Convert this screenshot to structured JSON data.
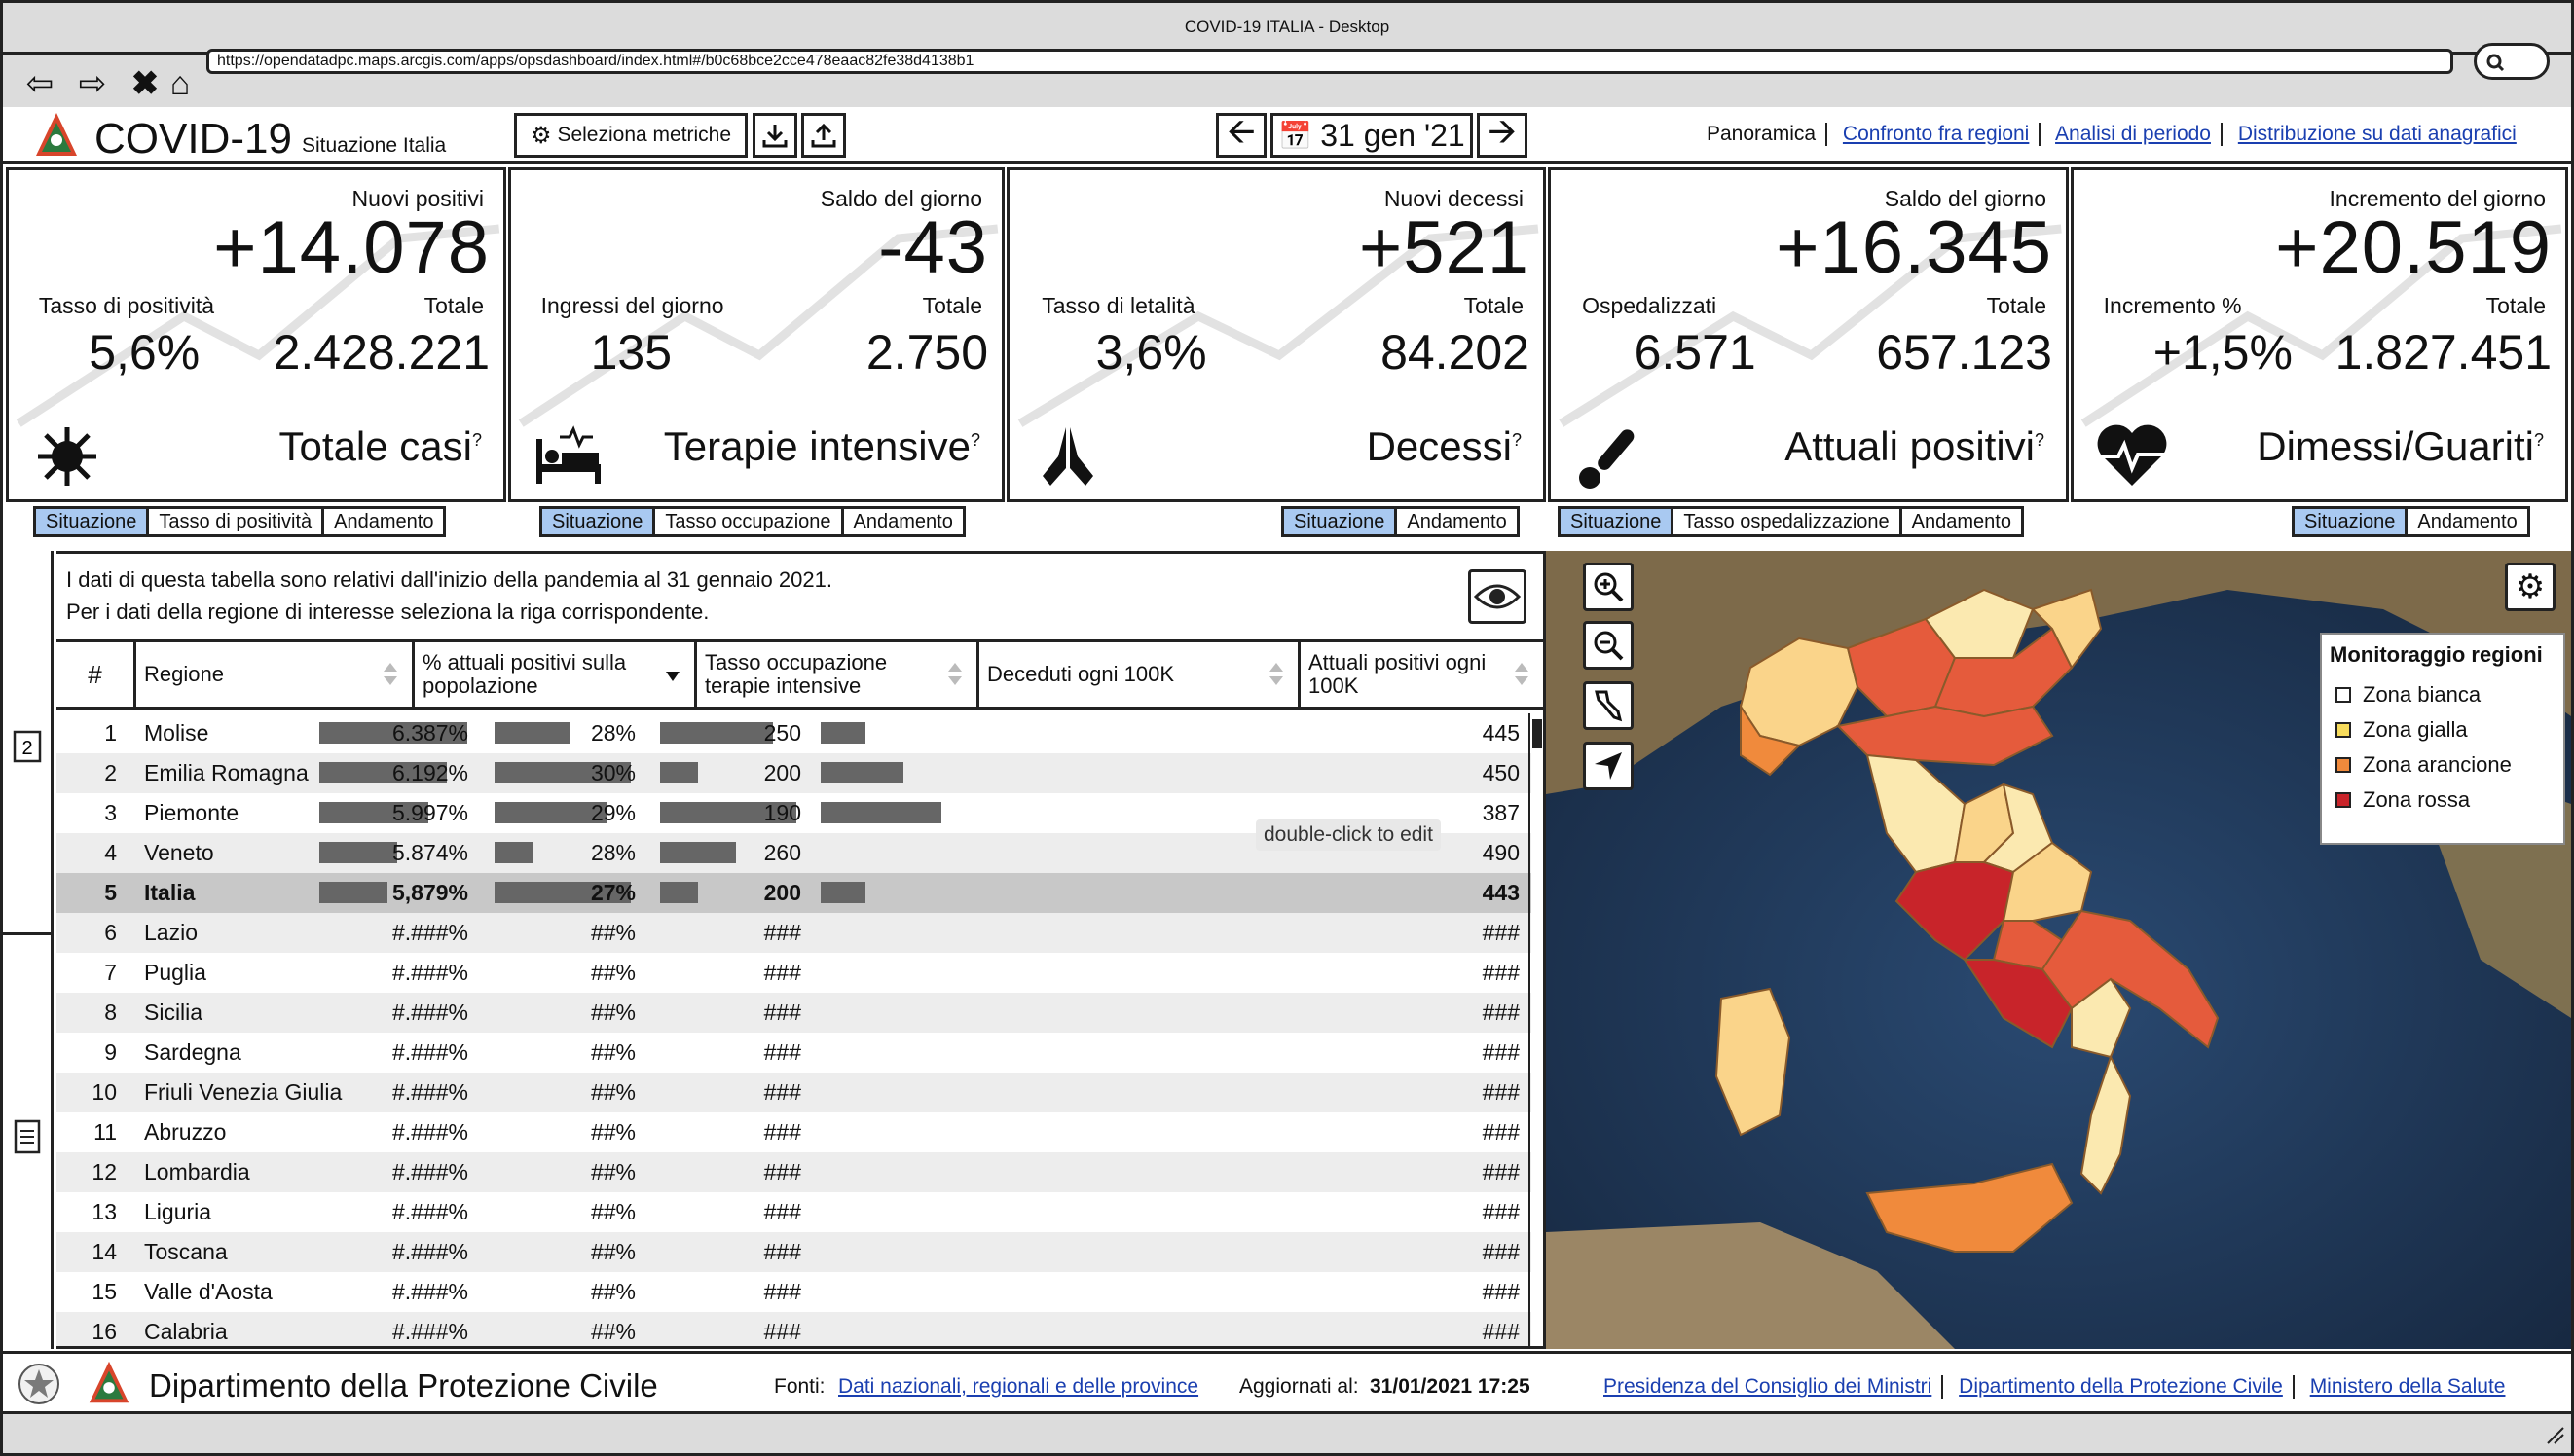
{
  "window": {
    "title": "COVID-19 ITALIA - Desktop",
    "url": "https://opendatadpc.maps.arcgis.com/apps/opsdashboard/index.html#/b0c68bce2cce478eaac82fe38d4138b1"
  },
  "header": {
    "title": "COVID-19",
    "subtitle": "Situazione Italia",
    "metrics_button": "Seleziona metriche",
    "date": "31 gen '21",
    "nav": [
      "Panoramica",
      "Confronto fra regioni",
      "Analisi di periodo",
      "Distribuzione su dati anagrafici"
    ]
  },
  "cards": [
    {
      "top_label": "Nuovi positivi",
      "big": "+14.078",
      "left_label": "Tasso di positività",
      "left_value": "5,6%",
      "right_label": "Totale",
      "right_value": "2.428.221",
      "title": "Totale casi",
      "icon": "virus-icon",
      "tabs": [
        "Situazione",
        "Tasso di positività",
        "Andamento"
      ]
    },
    {
      "top_label": "Saldo del giorno",
      "big": "-43",
      "left_label": "Ingressi del giorno",
      "left_value": "135",
      "right_label": "Totale",
      "right_value": "2.750",
      "title": "Terapie intensive",
      "icon": "hospital-bed-icon",
      "tabs": [
        "Situazione",
        "Tasso occupazione",
        "Andamento"
      ]
    },
    {
      "top_label": "Nuovi decessi",
      "big": "+521",
      "left_label": "Tasso di letalità",
      "left_value": "3,6%",
      "right_label": "Totale",
      "right_value": "84.202",
      "title": "Decessi",
      "icon": "praying-hands-icon",
      "tabs": [
        "Situazione",
        "Andamento"
      ]
    },
    {
      "top_label": "Saldo del giorno",
      "big": "+16.345",
      "left_label": "Ospedalizzati",
      "left_value": "6.571",
      "right_label": "Totale",
      "right_value": "657.123",
      "title": "Attuali positivi",
      "icon": "thermometer-icon",
      "tabs": [
        "Situazione",
        "Tasso ospedalizzazione",
        "Andamento"
      ]
    },
    {
      "top_label": "Incremento del giorno",
      "big": "+20.519",
      "left_label": "Incremento %",
      "left_value": "+1,5%",
      "right_label": "Totale",
      "right_value": "1.827.451",
      "title": "Dimessi/Guariti",
      "icon": "heartbeat-icon",
      "tabs": [
        "Situazione",
        "Andamento"
      ]
    }
  ],
  "table": {
    "note_line1": "I dati di questa tabella sono relativi dall'inizio della pandemia al 31 gennaio 2021.",
    "note_line2": "Per i dati della regione di interesse seleziona la riga corrispondente.",
    "headers": [
      "#",
      "Regione",
      "% attuali positivi sulla popolazione",
      "Tasso occupazione terapie intensive",
      "Deceduti ogni 100K",
      "Attuali positivi ogni 100K"
    ],
    "rows": [
      {
        "n": "1",
        "regione": "Molise",
        "pct": "6.387%",
        "occ": "28%",
        "dec": "250",
        "att": "445",
        "b1": 0.95,
        "b2": 0.5,
        "b3": 0.75,
        "b4": 0.35
      },
      {
        "n": "2",
        "regione": "Emilia Romagna",
        "pct": "6.192%",
        "occ": "30%",
        "dec": "200",
        "att": "450",
        "b1": 0.82,
        "b2": 0.9,
        "b3": 0.25,
        "b4": 0.65
      },
      {
        "n": "3",
        "regione": "Piemonte",
        "pct": "5.997%",
        "occ": "29%",
        "dec": "190",
        "att": "387",
        "b1": 0.7,
        "b2": 0.75,
        "b3": 0.9,
        "b4": 0.95
      },
      {
        "n": "4",
        "regione": "Veneto",
        "pct": "5.874%",
        "occ": "28%",
        "dec": "260",
        "att": "490",
        "b1": 0.5,
        "b2": 0.25,
        "b3": 0.5,
        "b4": 0
      },
      {
        "n": "5",
        "regione": "Italia",
        "pct": "5,879%",
        "occ": "27%",
        "dec": "200",
        "att": "443",
        "b1": 0.44,
        "b2": 0.9,
        "b3": 0.25,
        "b4": 0.35
      },
      {
        "n": "6",
        "regione": "Lazio",
        "pct": "#.###%",
        "occ": "##%",
        "dec": "###",
        "att": "###"
      },
      {
        "n": "7",
        "regione": "Puglia",
        "pct": "#.###%",
        "occ": "##%",
        "dec": "###",
        "att": "###"
      },
      {
        "n": "8",
        "regione": "Sicilia",
        "pct": "#.###%",
        "occ": "##%",
        "dec": "###",
        "att": "###"
      },
      {
        "n": "9",
        "regione": "Sardegna",
        "pct": "#.###%",
        "occ": "##%",
        "dec": "###",
        "att": "###"
      },
      {
        "n": "10",
        "regione": "Friuli Venezia Giulia",
        "pct": "#.###%",
        "occ": "##%",
        "dec": "###",
        "att": "###"
      },
      {
        "n": "11",
        "regione": "Abruzzo",
        "pct": "#.###%",
        "occ": "##%",
        "dec": "###",
        "att": "###"
      },
      {
        "n": "12",
        "regione": "Lombardia",
        "pct": "#.###%",
        "occ": "##%",
        "dec": "###",
        "att": "###"
      },
      {
        "n": "13",
        "regione": "Liguria",
        "pct": "#.###%",
        "occ": "##%",
        "dec": "###",
        "att": "###"
      },
      {
        "n": "14",
        "regione": "Toscana",
        "pct": "#.###%",
        "occ": "##%",
        "dec": "###",
        "att": "###"
      },
      {
        "n": "15",
        "regione": "Valle d'Aosta",
        "pct": "#.###%",
        "occ": "##%",
        "dec": "###",
        "att": "###"
      },
      {
        "n": "16",
        "regione": "Calabria",
        "pct": "#.###%",
        "occ": "##%",
        "dec": "###",
        "att": "###"
      }
    ],
    "tooltip": "double-click to edit"
  },
  "map": {
    "legend_title": "Monitoraggio regioni",
    "legend": [
      {
        "label": "Zona bianca",
        "color": "#ffffff"
      },
      {
        "label": "Zona gialla",
        "color": "#f7dc5c"
      },
      {
        "label": "Zona arancione",
        "color": "#f08a3c"
      },
      {
        "label": "Zona rossa",
        "color": "#c8242a"
      }
    ]
  },
  "footer": {
    "org": "Dipartimento della Protezione Civile",
    "sources_label": "Fonti:",
    "sources_link": "Dati nazionali, regionali e delle province",
    "updated_label": "Aggiornati al:",
    "updated_value": "31/01/2021 17:25",
    "links": [
      "Presidenza del Consiglio dei Ministri",
      "Dipartimento della Protezione Civile",
      "Ministero della Salute"
    ]
  },
  "colors": {
    "tab_active": "#a9c9f1",
    "link": "#1a3fb0",
    "bar": "#666666"
  }
}
